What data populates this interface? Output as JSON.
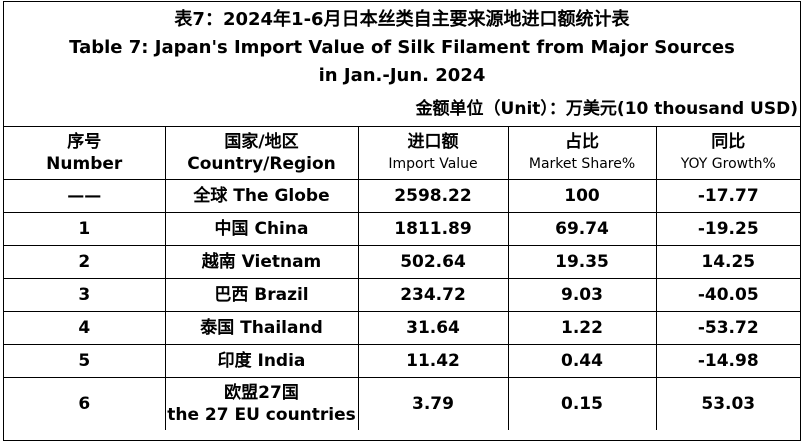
{
  "title": [
    "表7：2024年1-6月日本丝类自主要来源地进口额统计表",
    "Table 7: Japan's Import Value of Silk Filament from Major Sources",
    "in Jan.-Jun. 2024"
  ],
  "unit": "金额单位（Unit）：万美元(10 thousand USD)",
  "table": {
    "headers": [
      [
        "序号",
        "Number"
      ],
      [
        "国家/地区",
        "Country/Region"
      ],
      [
        "进口额",
        "Import Value"
      ],
      [
        "占比",
        "Market Share%"
      ],
      [
        "同比",
        "YOY Growth%"
      ]
    ],
    "rows": [
      [
        "——",
        "全球 The Globe",
        "2598.22",
        "100",
        "-17.77"
      ],
      [
        "1",
        "中国 China",
        "1811.89",
        "69.74",
        "-19.25"
      ],
      [
        "2",
        "越南 Vietnam",
        "502.64",
        "19.35",
        "14.25"
      ],
      [
        "3",
        "巴西 Brazil",
        "234.72",
        "9.03",
        "-40.05"
      ],
      [
        "4",
        "泰国 Thailand",
        "31.64",
        "1.22",
        "-53.72"
      ],
      [
        "5",
        "印度 India",
        "11.42",
        "0.44",
        "-14.98"
      ],
      [
        "6",
        "欧盟27国\nthe 27 EU countries",
        "3.79",
        "0.15",
        "53.03"
      ]
    ]
  }
}
